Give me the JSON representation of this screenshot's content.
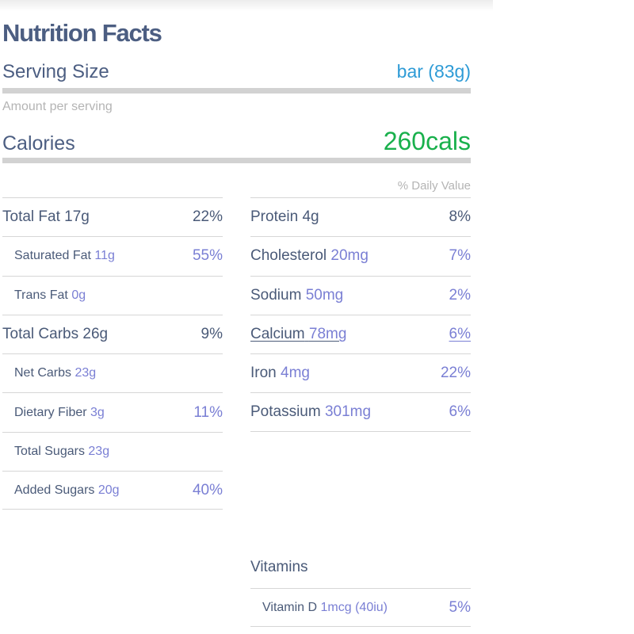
{
  "title": "Nutrition Facts",
  "serving": {
    "label": "Serving Size",
    "value": "bar (83g)"
  },
  "amount_per_serving": "Amount per serving",
  "calories": {
    "label": "Calories",
    "value": "260cals"
  },
  "daily_value_header": "% Daily Value",
  "left": [
    {
      "label": "Total Fat",
      "amount": "17g",
      "pct": "22%"
    },
    {
      "label": "Saturated Fat",
      "amount": "11g",
      "pct": "55%"
    },
    {
      "label": "Trans Fat",
      "amount": "0g",
      "pct": ""
    },
    {
      "label": "Total Carbs",
      "amount": "26g",
      "pct": "9%"
    },
    {
      "label": "Net Carbs",
      "amount": "23g",
      "pct": ""
    },
    {
      "label": "Dietary Fiber",
      "amount": "3g",
      "pct": "11%"
    },
    {
      "label": "Total Sugars",
      "amount": "23g",
      "pct": ""
    },
    {
      "label": "Added Sugars",
      "amount": "20g",
      "pct": "40%"
    }
  ],
  "right": [
    {
      "label": "Protein",
      "amount": "4g",
      "pct": "8%"
    },
    {
      "label": "Cholesterol",
      "amount": "20mg",
      "pct": "7%"
    },
    {
      "label": "Sodium",
      "amount": "50mg",
      "pct": "2%"
    },
    {
      "label": "Calcium",
      "amount": "78mg",
      "pct": "6%"
    },
    {
      "label": "Iron",
      "amount": "4mg",
      "pct": "22%"
    },
    {
      "label": "Potassium",
      "amount": "301mg",
      "pct": "6%"
    }
  ],
  "vitamins": {
    "title": "Vitamins",
    "items": [
      {
        "label": "Vitamin D",
        "amount": "1mcg (40iu)",
        "pct": "5%"
      }
    ]
  },
  "colors": {
    "heading": "#4c5e82",
    "serving_value": "#2e9bd6",
    "calories_value": "#19b04c",
    "amount_accent": "#7a7fd4",
    "muted": "#b4b4b4",
    "divider": "#d2d2d2"
  }
}
